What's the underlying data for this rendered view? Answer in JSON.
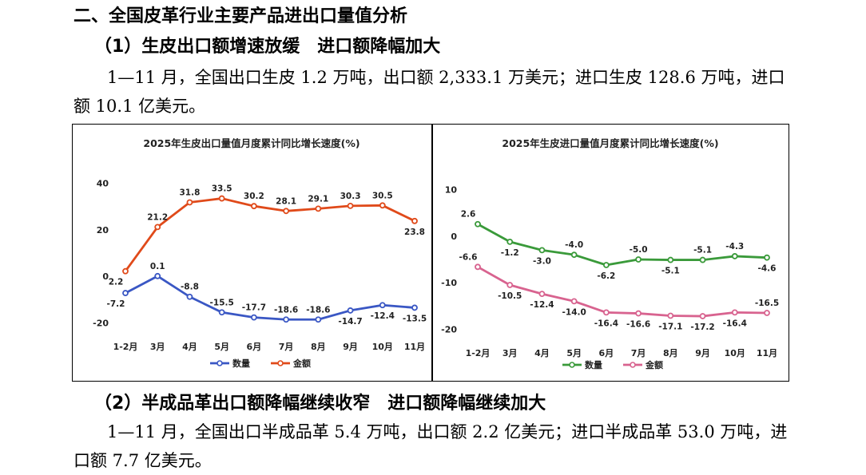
{
  "section_title": "二、全国皮革行业主要产品进出口量值分析",
  "sub1": {
    "title": "（1）生皮出口额增速放缓　进口额降幅加大",
    "paragraph": "1—11 月，全国出口生皮 1.2 万吨，出口额 2,333.1 万美元；进口生皮 128.6 万吨，进口额 10.1 亿美元。"
  },
  "sub2": {
    "title": "（2）半成品革出口额降幅继续收窄　进口额降幅继续加大",
    "paragraph": "1—11 月，全国出口半成品革 5.4 万吨，出口额 2.2 亿美元；进口半成品革 53.0 万吨，进口额 7.7 亿美元。"
  },
  "chart_data": [
    {
      "type": "line",
      "title": "2025年生皮出口量值月度累计同比增长速度(%)",
      "categories": [
        "1-2月",
        "3月",
        "4月",
        "5月",
        "6月",
        "7月",
        "8月",
        "9月",
        "10月",
        "11月"
      ],
      "yticks": [
        -20,
        0,
        20,
        40
      ],
      "ylim": [
        -24,
        44
      ],
      "series": [
        {
          "name": "数量",
          "color": "#3a57c4",
          "values": [
            -7.2,
            0.1,
            -8.8,
            -15.5,
            -17.7,
            -18.6,
            -18.6,
            -14.7,
            -12.4,
            -13.5
          ]
        },
        {
          "name": "金额",
          "color": "#e04a1a",
          "values": [
            2.2,
            21.2,
            31.8,
            33.5,
            30.2,
            28.1,
            29.1,
            30.3,
            30.5,
            23.8
          ]
        }
      ]
    },
    {
      "type": "line",
      "title": "2025年生皮进口量值月度累计同比增长速度(%)",
      "categories": [
        "1-2月",
        "3月",
        "4月",
        "5月",
        "6月",
        "7月",
        "8月",
        "9月",
        "10月",
        "11月"
      ],
      "yticks": [
        -20,
        -10,
        0,
        10
      ],
      "ylim": [
        -22,
        12
      ],
      "series": [
        {
          "name": "数量",
          "color": "#3a9a3a",
          "values": [
            2.6,
            -1.2,
            -3.0,
            -4.0,
            -6.2,
            -5.0,
            -5.1,
            -5.1,
            -4.3,
            -4.6
          ]
        },
        {
          "name": "金额",
          "color": "#d8638f",
          "values": [
            -6.6,
            -10.5,
            -12.4,
            -14.0,
            -16.4,
            -16.6,
            -17.1,
            -17.2,
            -16.4,
            -16.5
          ]
        }
      ]
    }
  ]
}
